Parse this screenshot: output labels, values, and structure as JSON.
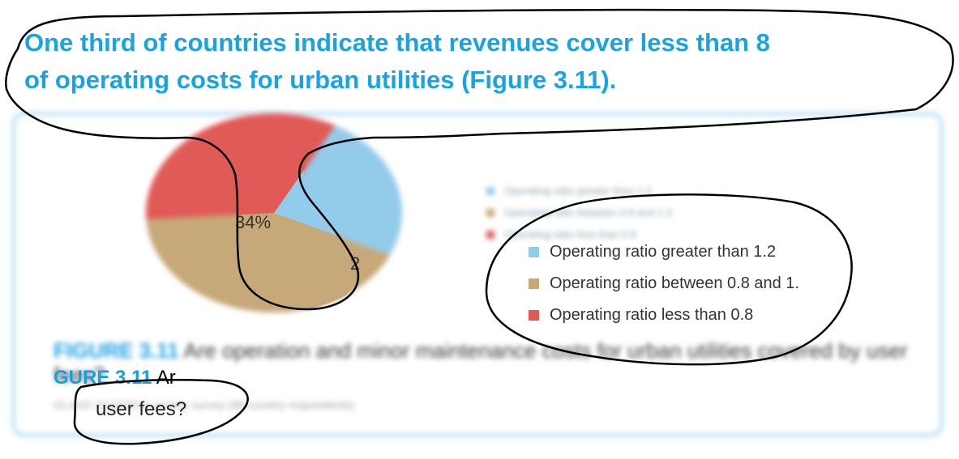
{
  "headline": {
    "line1": "One third of countries indicate that revenues cover less than 8",
    "line2": "of operating costs for urban utilities (Figure 3.11)."
  },
  "chart_data": {
    "type": "pie",
    "slices": [
      {
        "label": "Operating ratio greater than 1.2",
        "value": 24,
        "display": "24%",
        "color": "#93cbea"
      },
      {
        "label": "Operating ratio between 0.8 and 1.",
        "value": 42,
        "display": "",
        "color": "#c7a878"
      },
      {
        "label": "Operating ratio less than 0.8",
        "value": 34,
        "display": "34%",
        "color": "#e05a58"
      }
    ],
    "legend_placement": "right"
  },
  "legend": {
    "blurred_rows": [
      "Operating ratio greater than 1.2",
      "Operating ratio between 0.8 and 1.2",
      "Operating ratio less than 0.8"
    ],
    "items": [
      {
        "label": "Operating ratio greater than 1.2",
        "color": "#93cbea"
      },
      {
        "label": "Operating ratio between 0.8 and 1.",
        "color": "#c7a878"
      },
      {
        "label": "Operating ratio less than 0.8",
        "color": "#e05a58"
      }
    ]
  },
  "caption": {
    "figure_label": "FIGURE 3.11",
    "figure_label_partial": "GURE 3.11",
    "blurred_text": "Are operation and minor maintenance costs for urban utilities covered by user fees?",
    "partial_text": "Ar",
    "user_fees": "user fees?",
    "note": "GLAAS 2013/2014 country survey (88 country respondents)"
  },
  "pie_labels": {
    "inner_partial": "2"
  },
  "colors": {
    "accent": "#1aa3e1",
    "card_border": "#bfe3f7"
  }
}
